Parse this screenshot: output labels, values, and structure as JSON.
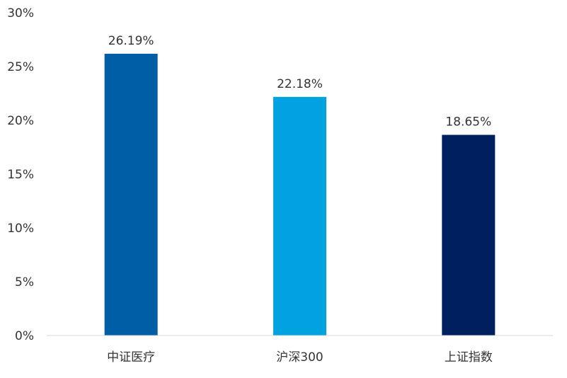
{
  "chart_data": {
    "type": "bar",
    "categories": [
      "中证医疗",
      "沪深300",
      "上证指数"
    ],
    "values": [
      26.19,
      22.18,
      18.65
    ],
    "data_labels": [
      "26.19%",
      "22.18%",
      "18.65%"
    ],
    "colors": [
      "#005EA6",
      "#00A3E0",
      "#001F5F"
    ],
    "ylim": [
      0,
      30
    ],
    "yticks": [
      0,
      5,
      10,
      15,
      20,
      25,
      30
    ],
    "ytick_labels": [
      "0%",
      "5%",
      "10%",
      "15%",
      "20%",
      "25%",
      "30%"
    ],
    "grid": false,
    "axis_color": "#D9D9D9"
  }
}
